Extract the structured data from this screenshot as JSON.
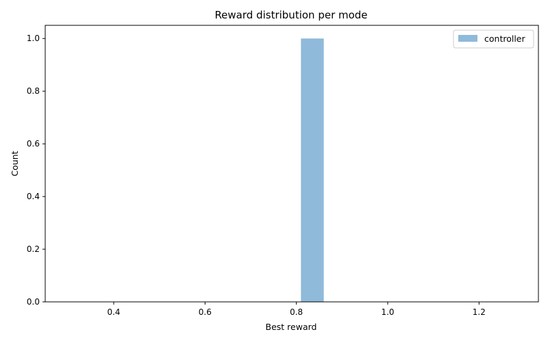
{
  "chart_data": {
    "type": "bar",
    "title": "Reward distribution per mode",
    "xlabel": "Best reward",
    "ylabel": "Count",
    "xlim": [
      0.25,
      1.33
    ],
    "ylim": [
      0,
      1.05
    ],
    "xticks": [
      0.4,
      0.6,
      0.8,
      1.0,
      1.2
    ],
    "xtick_labels": [
      "0.4",
      "0.6",
      "0.8",
      "1.0",
      "1.2"
    ],
    "yticks": [
      0.0,
      0.2,
      0.4,
      0.6,
      0.8,
      1.0
    ],
    "ytick_labels": [
      "0.0",
      "0.2",
      "0.4",
      "0.6",
      "0.8",
      "1.0"
    ],
    "grid": false,
    "legend_position": "top-right",
    "series": [
      {
        "name": "controller",
        "color": "#8fbada",
        "bins": [
          {
            "x0": 0.81,
            "x1": 0.86,
            "value": 1.0
          }
        ]
      }
    ]
  }
}
